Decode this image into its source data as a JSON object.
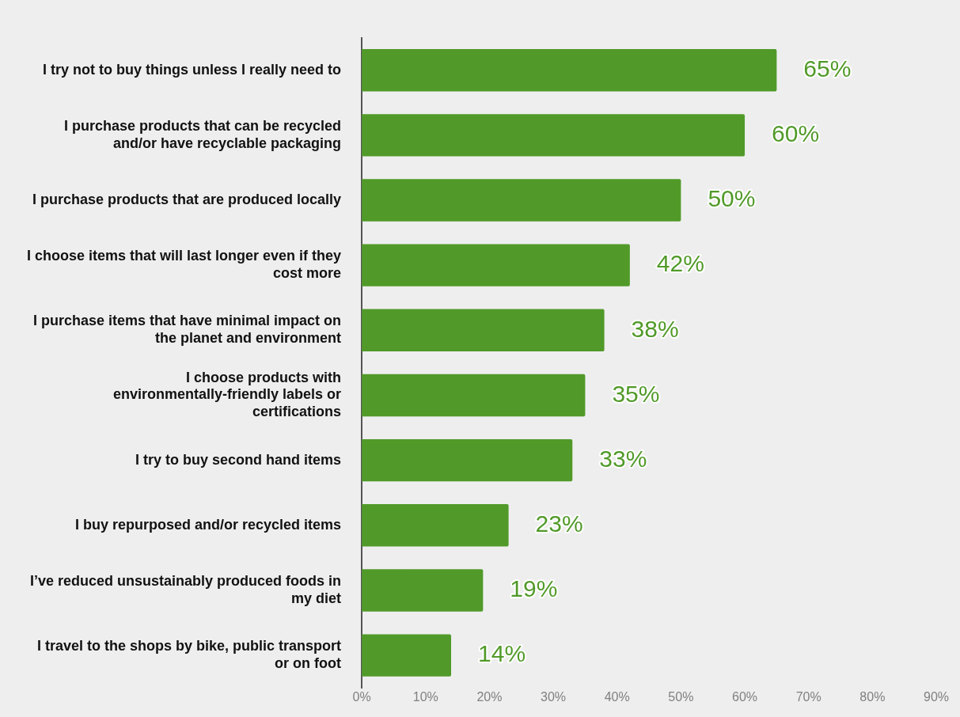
{
  "chart_data": {
    "type": "bar",
    "orientation": "horizontal",
    "categories": [
      "I try not to buy things unless I really need to",
      "I purchase products that can be recycled and/or have recyclable packaging",
      "I purchase products that are produced locally",
      "I choose items that will last longer even if they cost more",
      "I purchase items that have minimal impact on the planet and environment",
      "I choose products with environmentally-friendly labels or certifications",
      "I try to buy second hand items",
      "I buy repurposed and/or recycled items",
      "I’ve reduced unsustainably produced foods in my diet",
      "I travel to the shops by bike, public transport or on foot"
    ],
    "values": [
      65,
      60,
      50,
      42,
      38,
      35,
      33,
      23,
      19,
      14
    ],
    "value_labels": [
      "65%",
      "60%",
      "50%",
      "42%",
      "38%",
      "35%",
      "33%",
      "23%",
      "19%",
      "14%"
    ],
    "color": "#519a29",
    "xlim": [
      0,
      90
    ],
    "xticks": [
      {
        "value": 0,
        "label": "0%"
      },
      {
        "value": 10,
        "label": "10%"
      },
      {
        "value": 20,
        "label": "20%"
      },
      {
        "value": 30,
        "label": "30%"
      },
      {
        "value": 40,
        "label": "40%"
      },
      {
        "value": 50,
        "label": "50%"
      },
      {
        "value": 60,
        "label": "60%"
      },
      {
        "value": 70,
        "label": "70%"
      },
      {
        "value": 80,
        "label": "80%"
      },
      {
        "value": 90,
        "label": "90%"
      }
    ],
    "grid": false,
    "legend": false
  }
}
